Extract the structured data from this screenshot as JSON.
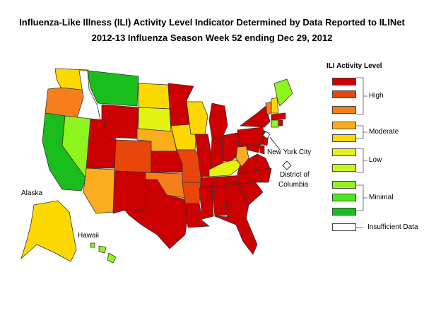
{
  "title": {
    "line1": "Influenza-Like Illness (ILI) Activity Level Indicator Determined by Data Reported to ILINet",
    "line2": "2012-13  Influenza Season Week  52 ending Dec 29, 2012"
  },
  "labels": {
    "alaska": "Alaska",
    "hawaii": "Hawaii",
    "nyc": "New York City",
    "dc_line1": "District of",
    "dc_line2": "Columbia"
  },
  "legend": {
    "title": "ILI Activity Level",
    "colors": [
      "#cc0000",
      "#e8460a",
      "#f77f1b",
      "#fbad1d",
      "#fbd900",
      "#e3f211",
      "#c6f51f",
      "#90f41e",
      "#4ee81c",
      "#19bd1c",
      "#ffffff"
    ],
    "groups": [
      {
        "label": "High"
      },
      {
        "label": "Moderate"
      },
      {
        "label": "Low"
      },
      {
        "label": "Minimal"
      },
      {
        "label": "Insufficient Data"
      }
    ]
  },
  "state_colors": {
    "high10": "#cc0000",
    "high9": "#e8460a",
    "high8": "#f77f1b",
    "mod7": "#fbad1d",
    "mod6": "#fbd900",
    "low5": "#e3f211",
    "low4": "#c6f51f",
    "min3": "#90f41e",
    "min2": "#4ee81c",
    "min1": "#19bd1c",
    "insufficient": "#ffffff"
  }
}
